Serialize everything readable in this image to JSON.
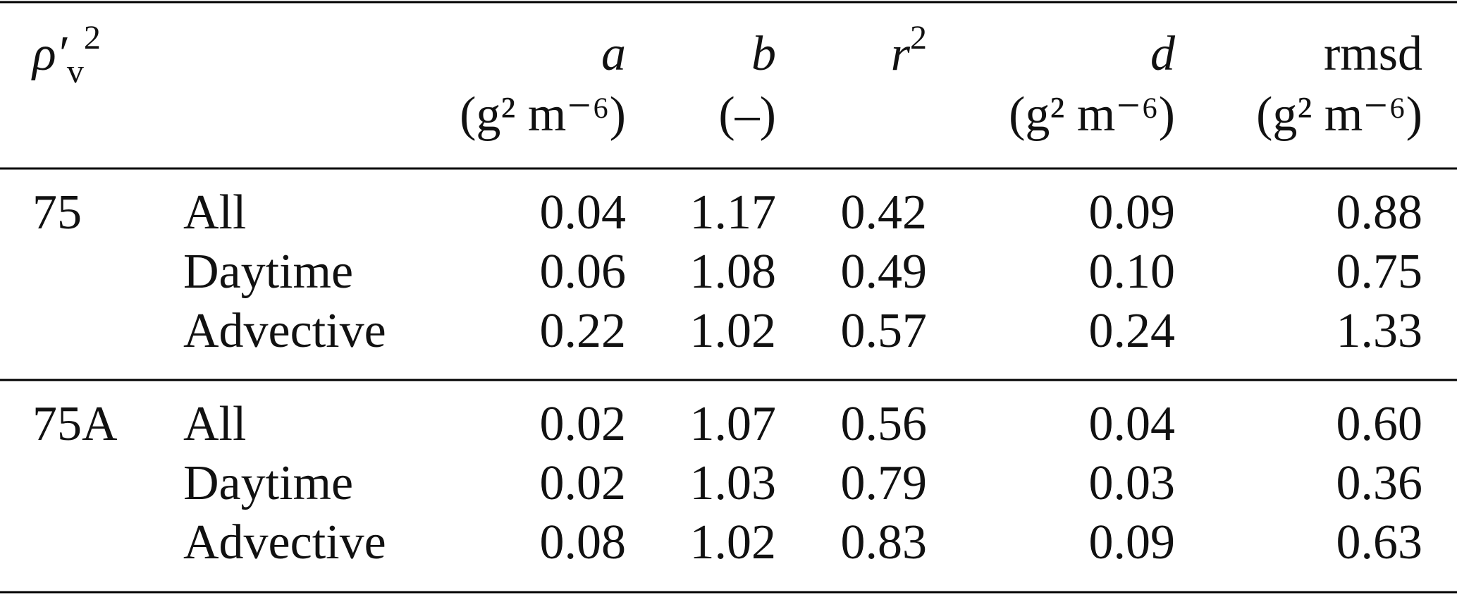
{
  "header": [
    {
      "symbol": {
        "base": "ρ′",
        "sub": "v",
        "sup": "2"
      }
    },
    {},
    {
      "symbol": {
        "base": "a"
      },
      "unit": "(g² m⁻⁶)"
    },
    {
      "symbol": {
        "base": "b"
      },
      "unit": "(–)"
    },
    {
      "symbol": {
        "base": "r",
        "sup": "2"
      }
    },
    {
      "symbol": {
        "base": "d"
      },
      "unit": "(g² m⁻⁶)"
    },
    {
      "symbol": {
        "base": "rmsd"
      },
      "unit": "(g² m⁻⁶)"
    }
  ],
  "groups": [
    {
      "label": "75",
      "rows": [
        {
          "name": "All",
          "values": [
            "0.04",
            "1.17",
            "0.42",
            "0.09",
            "0.88"
          ]
        },
        {
          "name": "Daytime",
          "values": [
            "0.06",
            "1.08",
            "0.49",
            "0.10",
            "0.75"
          ]
        },
        {
          "name": "Advective",
          "values": [
            "0.22",
            "1.02",
            "0.57",
            "0.24",
            "1.33"
          ]
        }
      ]
    },
    {
      "label": "75A",
      "rows": [
        {
          "name": "All",
          "values": [
            "0.02",
            "1.07",
            "0.56",
            "0.04",
            "0.60"
          ]
        },
        {
          "name": "Daytime",
          "values": [
            "0.02",
            "1.03",
            "0.79",
            "0.03",
            "0.36"
          ]
        },
        {
          "name": "Advective",
          "values": [
            "0.08",
            "1.02",
            "0.83",
            "0.09",
            "0.63"
          ]
        }
      ]
    }
  ]
}
